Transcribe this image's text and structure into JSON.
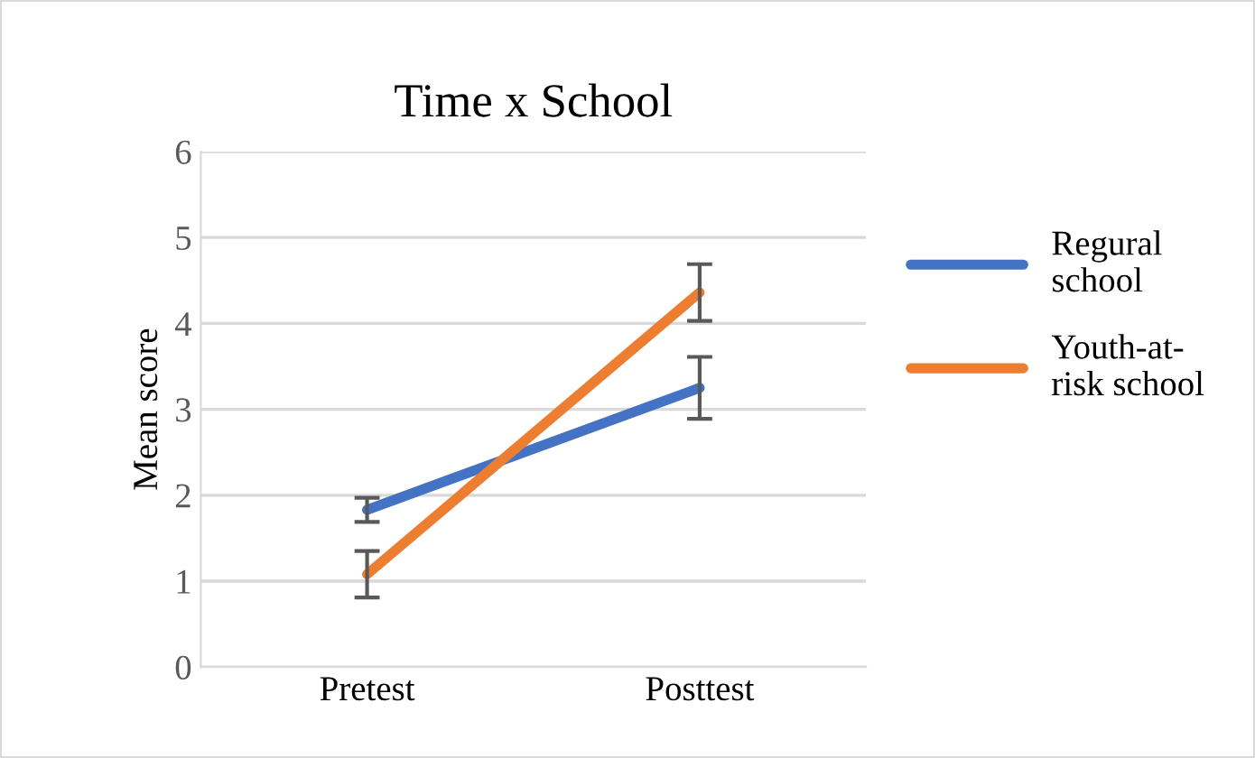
{
  "chart_data": {
    "type": "line",
    "title": "Time x School",
    "ylabel": "Mean score",
    "categories": [
      "Pretest",
      "Posttest"
    ],
    "series": [
      {
        "name": "Regural\nschool",
        "color": "#4472c4",
        "values": [
          1.83,
          3.25
        ],
        "errors": [
          0.14,
          0.36
        ]
      },
      {
        "name": "Youth-at-\nrisk school",
        "color": "#ed7d31",
        "values": [
          1.08,
          4.36
        ],
        "errors": [
          0.27,
          0.33
        ]
      }
    ],
    "ylim": [
      0,
      6
    ],
    "yticks": [
      0,
      1,
      2,
      3,
      4,
      5,
      6
    ],
    "grid": "y",
    "legend": "right",
    "marker": "none",
    "line_style": "solid"
  }
}
